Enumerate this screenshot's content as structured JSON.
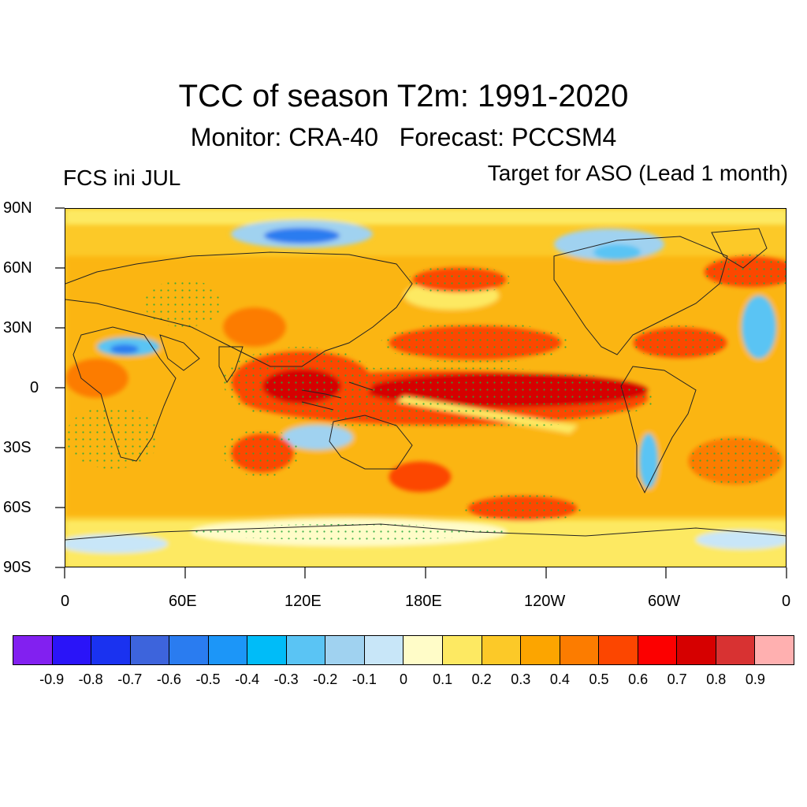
{
  "title": "TCC of season T2m: 1991-2020",
  "subtitle": "Monitor: CRA-40   Forecast: PCCSM4",
  "left_label": "FCS ini JUL",
  "right_label": "Target for ASO (Lead 1 month)",
  "lat_labels": [
    "90N",
    "60N",
    "30N",
    "0",
    "30S",
    "60S",
    "90S"
  ],
  "lon_labels": [
    "0",
    "60E",
    "120E",
    "180E",
    "120W",
    "60W",
    "0"
  ],
  "colorbar": {
    "colors": [
      "#8220f0",
      "#2a14f8",
      "#1a32f0",
      "#3d64dc",
      "#2a7cf0",
      "#1c96f8",
      "#00bcf8",
      "#5ac4f4",
      "#a0d2f0",
      "#c8e6f8",
      "#fffcc8",
      "#fde962",
      "#fcc928",
      "#fca500",
      "#fc7c00",
      "#fc4600",
      "#fc0000",
      "#d60000",
      "#d83232",
      "#ffb0b0"
    ],
    "labels": [
      "-0.9",
      "-0.8",
      "-0.7",
      "-0.6",
      "-0.5",
      "-0.4",
      "-0.3",
      "-0.2",
      "-0.1",
      "0",
      "0.1",
      "0.2",
      "0.3",
      "0.4",
      "0.5",
      "0.6",
      "0.7",
      "0.8",
      "0.9"
    ]
  }
}
